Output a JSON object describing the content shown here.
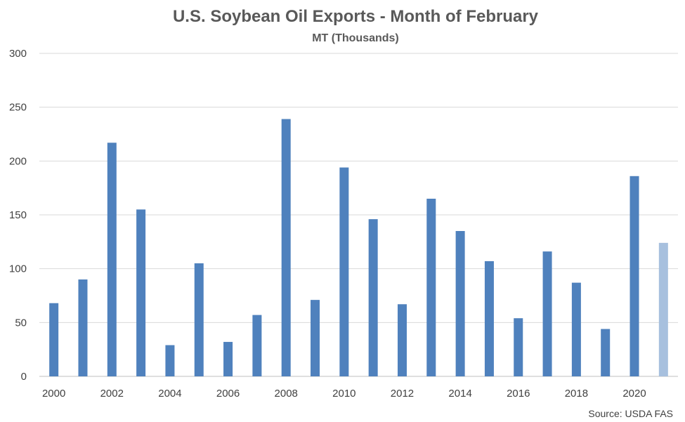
{
  "chart_data": {
    "type": "bar",
    "title": "U.S. Soybean Oil Exports - Month of February",
    "subtitle": "MT (Thousands)",
    "source": "Source: USDA FAS",
    "categories": [
      "2000",
      "2001",
      "2002",
      "2003",
      "2004",
      "2005",
      "2006",
      "2007",
      "2008",
      "2009",
      "2010",
      "2011",
      "2012",
      "2013",
      "2014",
      "2015",
      "2016",
      "2017",
      "2018",
      "2019",
      "2020",
      "2021"
    ],
    "x_tick_labels": [
      "2000",
      "2002",
      "2004",
      "2006",
      "2008",
      "2010",
      "2012",
      "2014",
      "2016",
      "2018",
      "2020"
    ],
    "values": [
      68,
      90,
      217,
      155,
      29,
      105,
      32,
      57,
      239,
      71,
      194,
      146,
      67,
      165,
      135,
      107,
      54,
      116,
      87,
      44,
      186,
      124
    ],
    "ylim": [
      0,
      300
    ],
    "y_ticks": [
      0,
      50,
      100,
      150,
      200,
      250,
      300
    ],
    "grid": true,
    "legend": "none",
    "colors": {
      "bar": "#4f81bd",
      "bar_highlight": "#a7c0de",
      "grid": "#d9d9d9",
      "text": "#595959"
    },
    "highlight_index": 21
  }
}
